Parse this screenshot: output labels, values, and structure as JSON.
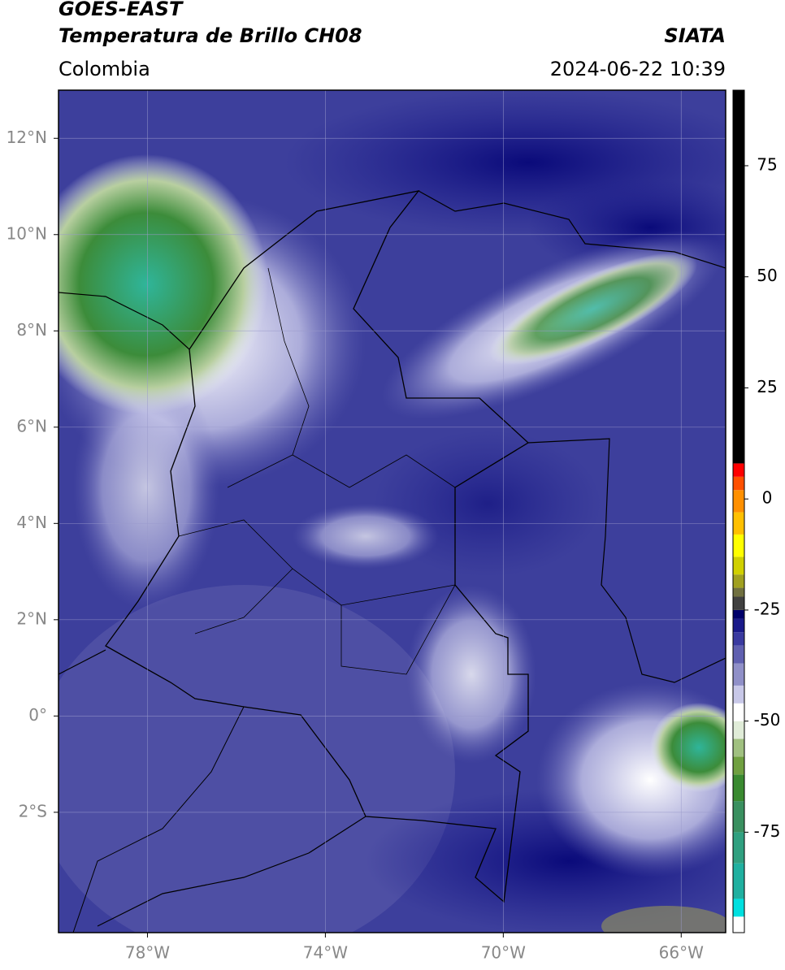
{
  "header": {
    "line1": "GOES-EAST",
    "line2": "Temperatura de Brillo CH08",
    "source": "SIATA",
    "region": "Colombia",
    "timestamp": "2024-06-22 10:39"
  },
  "map": {
    "xlim": [
      -80,
      -65
    ],
    "ylim": [
      -4.5,
      13
    ],
    "xticks": [
      {
        "value": -78,
        "label": "78°W"
      },
      {
        "value": -74,
        "label": "74°W"
      },
      {
        "value": -70,
        "label": "70°W"
      },
      {
        "value": -66,
        "label": "66°W"
      }
    ],
    "yticks": [
      {
        "value": 12,
        "label": "12°N"
      },
      {
        "value": 10,
        "label": "10°N"
      },
      {
        "value": 8,
        "label": "8°N"
      },
      {
        "value": 6,
        "label": "6°N"
      },
      {
        "value": 4,
        "label": "4°N"
      },
      {
        "value": 2,
        "label": "2°N"
      },
      {
        "value": 0,
        "label": "0°"
      },
      {
        "value": -2,
        "label": "2°S"
      }
    ],
    "grid": true
  },
  "colorbar": {
    "lim": [
      -97.6,
      92
    ],
    "ticks": [
      75,
      50,
      25,
      0,
      -25,
      -50,
      -75
    ],
    "bounds": [
      -97.6,
      -94,
      -90,
      -82,
      -75,
      -68,
      -62,
      -58,
      -54,
      -50,
      -46,
      -42,
      -37,
      -33,
      -30,
      -27,
      -25,
      -22,
      -20,
      -17,
      -13,
      -8,
      -3,
      2,
      5,
      8,
      92
    ],
    "colors": [
      "#ffffff",
      "#00e0e0",
      "#20b0a0",
      "#30a080",
      "#3a9060",
      "#3a8a30",
      "#70a040",
      "#a0c080",
      "#e0ecd8",
      "#ffffff",
      "#c8c8e8",
      "#9090c8",
      "#6060b0",
      "#3a3aa0",
      "#1a1a8a",
      "#00006a",
      "#404040",
      "#707040",
      "#a0a020",
      "#d0d000",
      "#ffff00",
      "#ffc000",
      "#ff9000",
      "#ff5000",
      "#ff0000",
      "#000000"
    ]
  }
}
